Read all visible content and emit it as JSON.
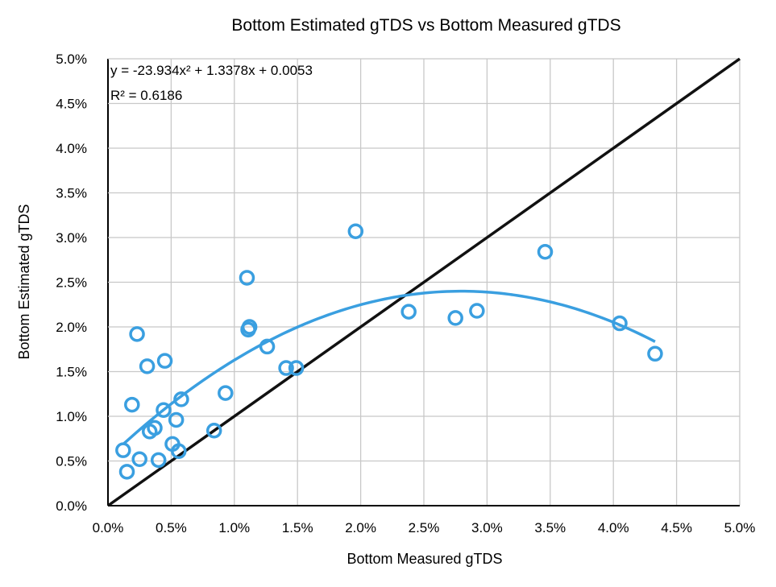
{
  "chart_data": {
    "type": "scatter",
    "title": "Bottom Estimated gTDS vs Bottom Measured gTDS",
    "xlabel": "Bottom Measured gTDS",
    "ylabel": "Bottom Estimated gTDS",
    "xlim": [
      0,
      0.05
    ],
    "ylim": [
      0,
      0.05
    ],
    "xticks": [
      "0.0%",
      "0.5%",
      "1.0%",
      "1.5%",
      "2.0%",
      "2.5%",
      "3.0%",
      "3.5%",
      "4.0%",
      "4.5%",
      "5.0%"
    ],
    "yticks": [
      "0.0%",
      "0.5%",
      "1.0%",
      "1.5%",
      "2.0%",
      "2.5%",
      "3.0%",
      "3.5%",
      "4.0%",
      "4.5%",
      "5.0%"
    ],
    "grid": true,
    "marker_color": "#3a9fe0",
    "trendline_color": "#3a9fe0",
    "reference_line_color": "#111111",
    "points": [
      {
        "x": 0.0012,
        "y": 0.0062
      },
      {
        "x": 0.0015,
        "y": 0.0038
      },
      {
        "x": 0.0019,
        "y": 0.0113
      },
      {
        "x": 0.0023,
        "y": 0.0192
      },
      {
        "x": 0.0025,
        "y": 0.0052
      },
      {
        "x": 0.0031,
        "y": 0.0156
      },
      {
        "x": 0.0033,
        "y": 0.0083
      },
      {
        "x": 0.0037,
        "y": 0.0087
      },
      {
        "x": 0.004,
        "y": 0.0051
      },
      {
        "x": 0.0044,
        "y": 0.0107
      },
      {
        "x": 0.0045,
        "y": 0.0162
      },
      {
        "x": 0.0051,
        "y": 0.0069
      },
      {
        "x": 0.0054,
        "y": 0.0096
      },
      {
        "x": 0.0056,
        "y": 0.0061
      },
      {
        "x": 0.0058,
        "y": 0.0119
      },
      {
        "x": 0.0084,
        "y": 0.0084
      },
      {
        "x": 0.0093,
        "y": 0.0126
      },
      {
        "x": 0.011,
        "y": 0.0255
      },
      {
        "x": 0.0111,
        "y": 0.0197
      },
      {
        "x": 0.0112,
        "y": 0.02
      },
      {
        "x": 0.0126,
        "y": 0.0178
      },
      {
        "x": 0.0141,
        "y": 0.0154
      },
      {
        "x": 0.0149,
        "y": 0.0154
      },
      {
        "x": 0.0196,
        "y": 0.0307
      },
      {
        "x": 0.0238,
        "y": 0.0217
      },
      {
        "x": 0.0275,
        "y": 0.021
      },
      {
        "x": 0.0292,
        "y": 0.0218
      },
      {
        "x": 0.0346,
        "y": 0.0284
      },
      {
        "x": 0.0405,
        "y": 0.0204
      },
      {
        "x": 0.0433,
        "y": 0.017
      }
    ],
    "trendline": {
      "type": "polynomial",
      "coefficients": {
        "a": -23.934,
        "b": 1.3378,
        "c": 0.0053
      },
      "x_range": [
        0.0012,
        0.0433
      ],
      "equation_label": "y = -23.934x² + 1.3378x + 0.0053",
      "r2_label": "R² = 0.6186"
    },
    "reference_line": {
      "x": [
        0,
        0.05
      ],
      "y": [
        0,
        0.05
      ]
    }
  }
}
